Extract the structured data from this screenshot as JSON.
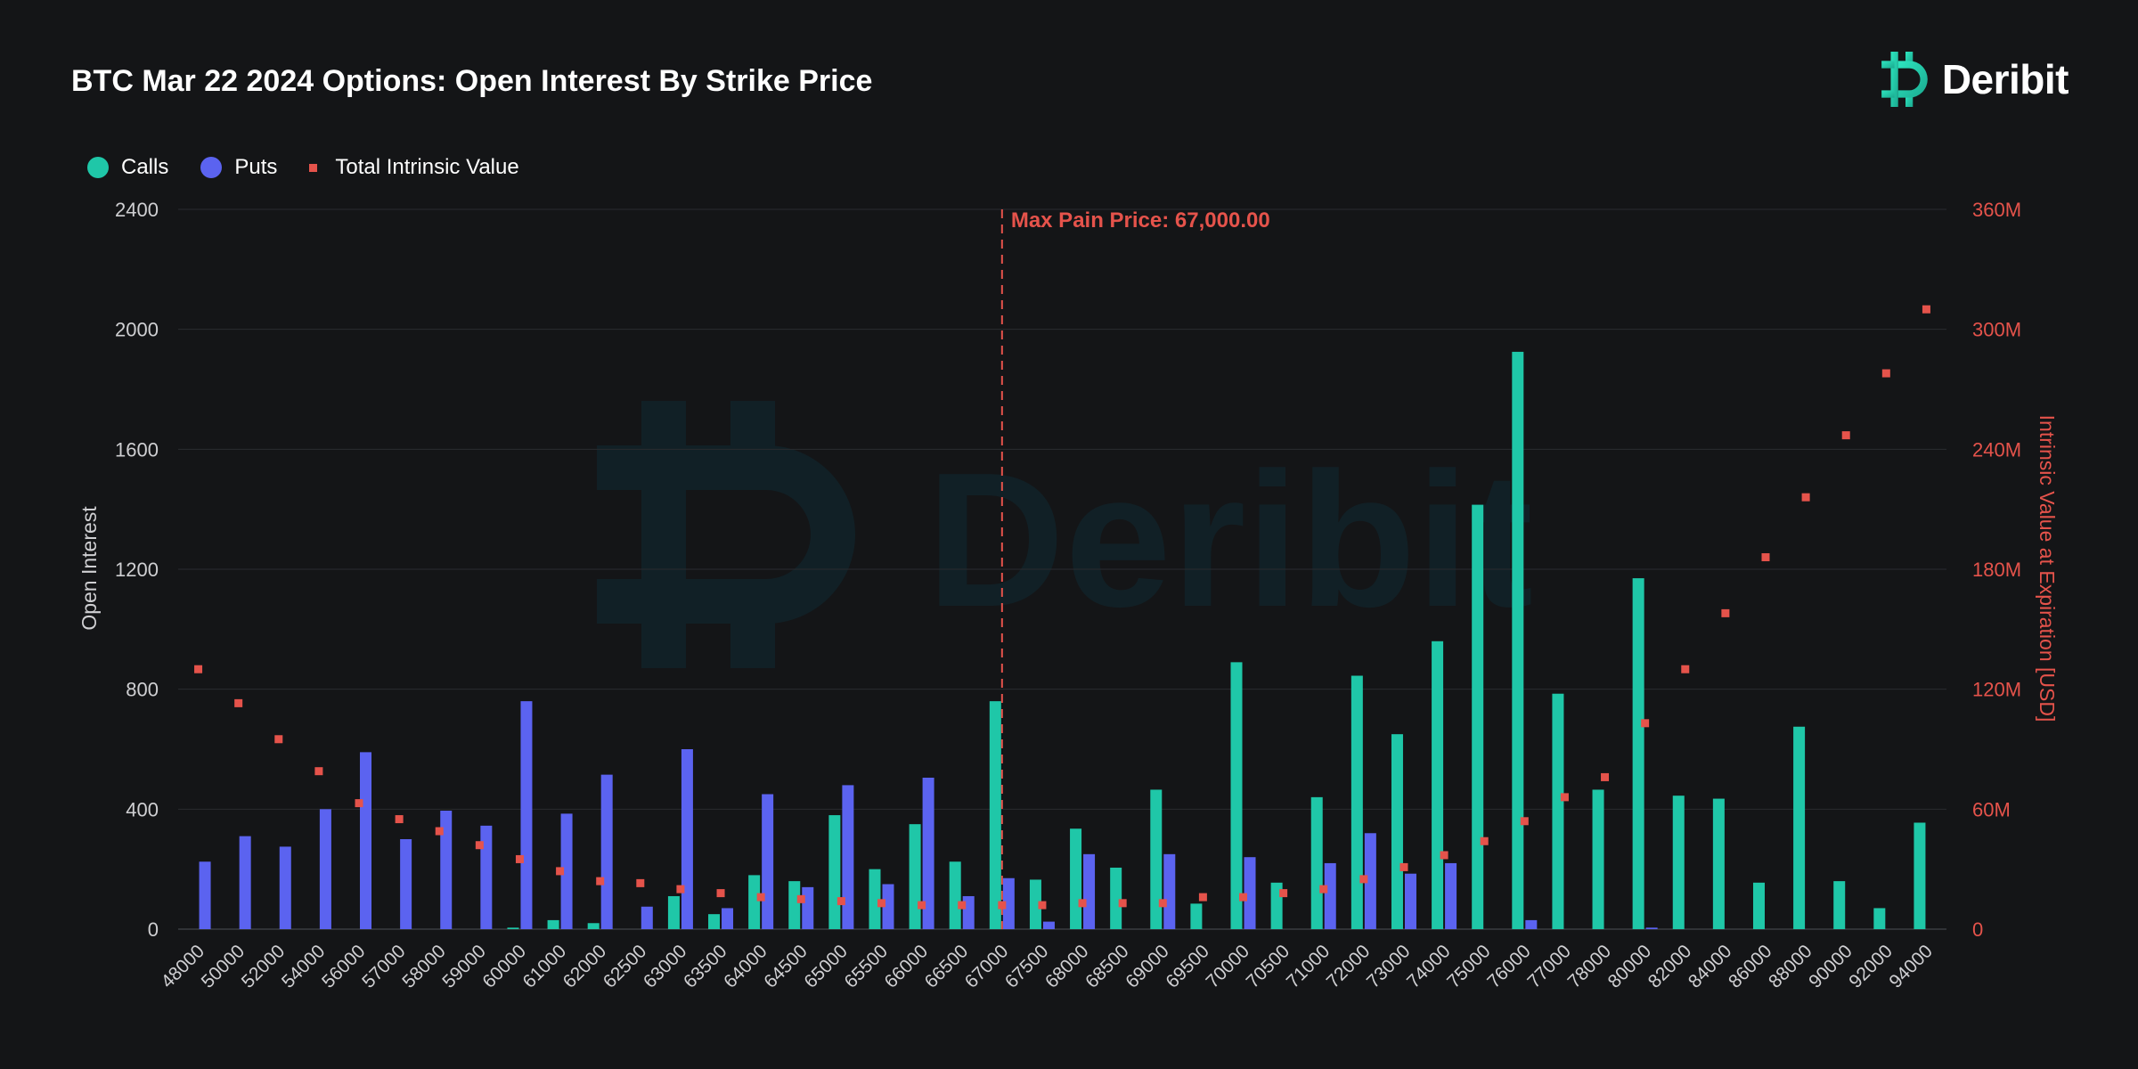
{
  "header": {
    "title": "BTC Mar 22 2024 Options: Open Interest By Strike Price",
    "brand": "Deribit"
  },
  "legend": {
    "calls": "Calls",
    "puts": "Puts",
    "intrinsic": "Total Intrinsic Value"
  },
  "colors": {
    "calls": "#1fc7a8",
    "puts": "#5b63f0",
    "intrinsic": "#e5534b",
    "background": "#141517",
    "grid": "#2a2c30"
  },
  "chart_data": {
    "type": "bar",
    "categories": [
      "48000",
      "50000",
      "52000",
      "54000",
      "56000",
      "57000",
      "58000",
      "59000",
      "60000",
      "61000",
      "62000",
      "62500",
      "63000",
      "63500",
      "64000",
      "64500",
      "65000",
      "65500",
      "66000",
      "66500",
      "67000",
      "67500",
      "68000",
      "68500",
      "69000",
      "69500",
      "70000",
      "70500",
      "71000",
      "72000",
      "73000",
      "74000",
      "75000",
      "76000",
      "77000",
      "78000",
      "80000",
      "82000",
      "84000",
      "86000",
      "88000",
      "90000",
      "92000",
      "94000"
    ],
    "series": [
      {
        "name": "Calls",
        "axis": "left",
        "values": [
          0,
          0,
          0,
          0,
          0,
          0,
          0,
          0,
          5,
          30,
          20,
          0,
          110,
          50,
          180,
          160,
          380,
          200,
          350,
          225,
          760,
          165,
          335,
          205,
          465,
          85,
          890,
          155,
          440,
          845,
          650,
          960,
          1415,
          1925,
          785,
          465,
          1170,
          445,
          435,
          155,
          675,
          160,
          70,
          355
        ]
      },
      {
        "name": "Puts",
        "axis": "left",
        "values": [
          225,
          310,
          275,
          400,
          590,
          300,
          395,
          345,
          760,
          385,
          515,
          75,
          600,
          70,
          450,
          140,
          480,
          150,
          505,
          110,
          170,
          25,
          250,
          0,
          250,
          0,
          240,
          0,
          220,
          320,
          185,
          220,
          0,
          30,
          0,
          0,
          5,
          0,
          0,
          0,
          0,
          0,
          0,
          0
        ]
      },
      {
        "name": "Total Intrinsic Value",
        "axis": "right",
        "values": [
          130,
          113,
          95,
          79,
          63,
          55,
          49,
          42,
          35,
          29,
          24,
          23,
          20,
          18,
          16,
          15,
          14,
          13,
          12,
          12,
          12,
          12,
          13,
          13,
          13,
          16,
          16,
          18,
          20,
          25,
          31,
          37,
          44,
          54,
          66,
          76,
          103,
          130,
          158,
          186,
          216,
          247,
          278,
          310
        ]
      }
    ],
    "left_axis": {
      "label": "Open Interest",
      "min": 0,
      "max": 2400,
      "ticks": [
        "0",
        "400",
        "800",
        "1200",
        "1600",
        "2000",
        "2400"
      ]
    },
    "right_axis": {
      "label": "Intrinsic Value at Expiration [USD]",
      "min": 0,
      "max": 360,
      "ticks": [
        "0",
        "60M",
        "120M",
        "180M",
        "240M",
        "300M",
        "360M"
      ]
    },
    "annotation": {
      "label": "Max Pain Price: 67,000.00",
      "category": "67000"
    },
    "grid": true,
    "legend_position": "top-left"
  }
}
